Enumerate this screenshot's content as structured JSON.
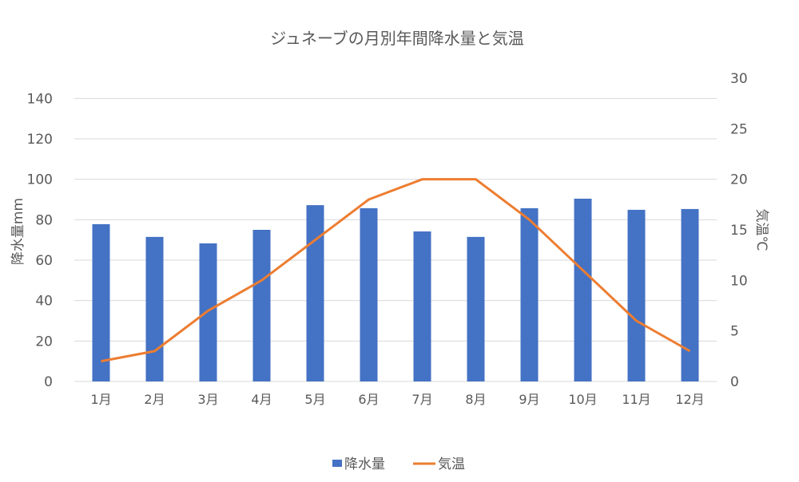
{
  "chart_data": {
    "type": "bar+line",
    "title": "ジュネーブの月別年間降水量と気温",
    "categories": [
      "1月",
      "2月",
      "3月",
      "4月",
      "5月",
      "6月",
      "7月",
      "8月",
      "9月",
      "10月",
      "11月",
      "12月"
    ],
    "series": [
      {
        "name": "降水量",
        "type": "bar",
        "axis": "left",
        "color": "#4472C4",
        "values": [
          77.8,
          71.5,
          68.3,
          75.0,
          87.2,
          85.7,
          74.2,
          71.5,
          85.7,
          90.4,
          84.9,
          85.3
        ]
      },
      {
        "name": "気温",
        "type": "line",
        "axis": "right",
        "color": "#ED7D31",
        "values": [
          2,
          3,
          7,
          10,
          14,
          18,
          20,
          20,
          16,
          11,
          6,
          3
        ]
      }
    ],
    "ylabel": "降水量mm",
    "y2label": "気温℃",
    "ylim": [
      0,
      150
    ],
    "y2lim": [
      0,
      30
    ],
    "yticks": [
      0,
      20,
      40,
      60,
      80,
      100,
      120,
      140
    ],
    "y2ticks": [
      0,
      5,
      10,
      15,
      20,
      25,
      30
    ],
    "grid": true,
    "legend_position": "bottom"
  }
}
